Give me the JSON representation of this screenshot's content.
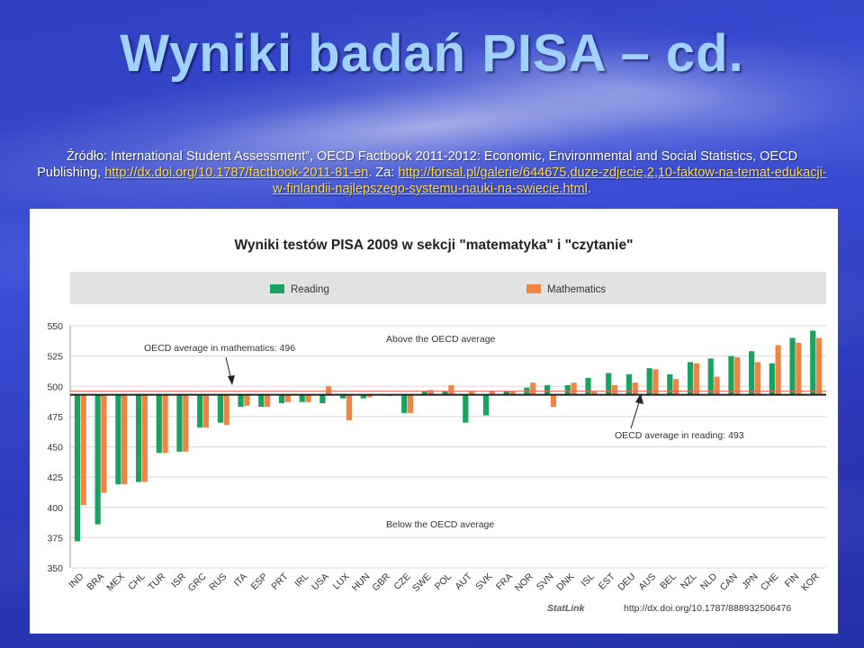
{
  "slide": {
    "title": "Wyniki badań PISA – cd.",
    "source_prefix": "Źródło: International Student Assessment”, OECD Factbook 2011-2012: Economic, Environmental and Social Statistics, OECD Publishing, ",
    "link1": "http://dx.doi.org/10.1787/factbook-2011-81-en",
    "source_mid": ". Za: ",
    "link2": "http://forsal.pl/galerie/644675,duze-zdjecie,2,10-faktow-na-temat-edukacji-w-finlandii-najlepszego-systemu-nauki-na-swiecie.html",
    "source_suffix": "."
  },
  "colors": {
    "reading": "#1aa35f",
    "mathematics": "#f08440",
    "background": "#2f3ec0",
    "title": "#9fd2ff",
    "link": "#ffd84a"
  },
  "chart_data": {
    "type": "bar",
    "title": "Wyniki testów PISA 2009 w sekcji \"matematyka\" i \"czytanie\"",
    "legend": {
      "placement": "top",
      "entries": [
        "Reading",
        "Mathematics"
      ]
    },
    "categories": [
      "IND",
      "BRA",
      "MEX",
      "CHL",
      "TUR",
      "ISR",
      "GRC",
      "RUS",
      "ITA",
      "ESP",
      "PRT",
      "IRL",
      "USA",
      "LUX",
      "HUN",
      "GBR",
      "CZE",
      "SWE",
      "POL",
      "AUT",
      "SVK",
      "FRA",
      "NOR",
      "SVN",
      "DNK",
      "ISL",
      "EST",
      "DEU",
      "AUS",
      "BEL",
      "NZL",
      "NLD",
      "CAN",
      "JPN",
      "CHE",
      "FIN",
      "KOR"
    ],
    "series": [
      {
        "name": "Reading",
        "values": [
          372,
          386,
          419,
          421,
          445,
          446,
          466,
          470,
          483,
          483,
          486,
          487,
          486,
          490,
          490,
          493,
          478,
          496,
          496,
          470,
          476,
          496,
          499,
          501,
          501,
          507,
          511,
          510,
          515,
          510,
          520,
          523,
          525,
          529,
          519,
          540,
          546
        ]
      },
      {
        "name": "Mathematics",
        "values": [
          402,
          412,
          419,
          421,
          445,
          446,
          466,
          468,
          484,
          483,
          487,
          487,
          500,
          472,
          491,
          492,
          478,
          497,
          501,
          496,
          496,
          496,
          503,
          483,
          503,
          496,
          501,
          503,
          514,
          506,
          519,
          508,
          524,
          520,
          534,
          536,
          540
        ]
      }
    ],
    "baseline": 493,
    "reference_lines": [
      496,
      493
    ],
    "ylim": [
      350,
      550
    ],
    "yticks": [
      350,
      375,
      400,
      425,
      450,
      475,
      500,
      525,
      550
    ],
    "grid": true,
    "annotations": {
      "math_avg": "OECD average in mathematics: 496",
      "reading_avg": "OECD average in reading: 493",
      "above": "Above the OECD average",
      "below": "Below the OECD average"
    },
    "statlink": "http://dx.doi.org/10.1787/888932506476"
  }
}
